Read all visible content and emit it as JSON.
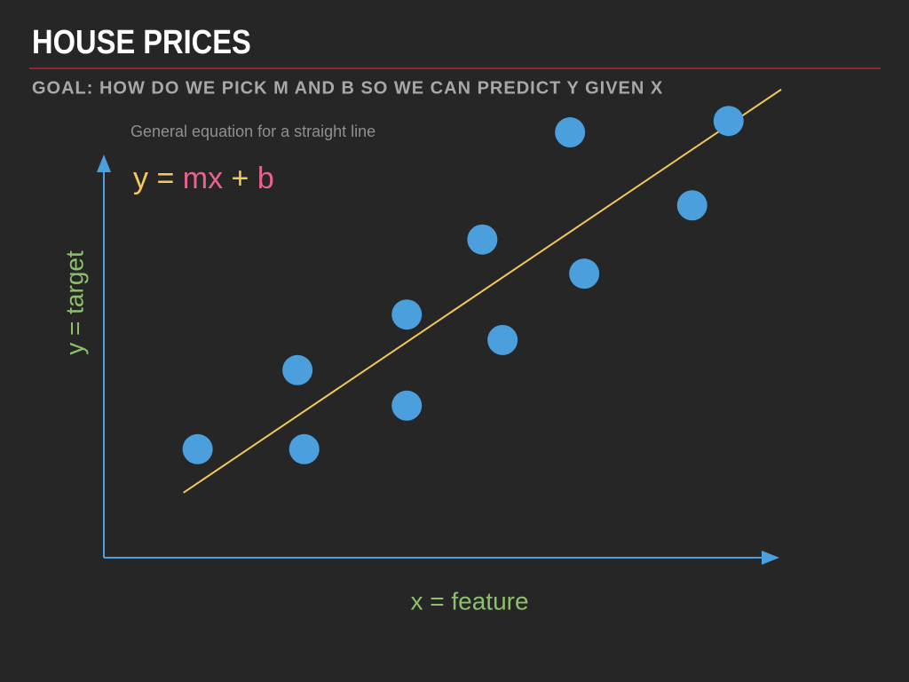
{
  "slide": {
    "title": "HOUSE PRICES",
    "subtitle": "GOAL: HOW DO WE PICK M AND B SO WE CAN PREDICT Y GIVEN X"
  },
  "chart_data": {
    "type": "scatter",
    "annotation": "General equation for a straight line",
    "equation": [
      {
        "text": "y = ",
        "color": "#f5c95c"
      },
      {
        "text": "mx",
        "color": "#e8638f"
      },
      {
        "text": " + ",
        "color": "#f5c95c"
      },
      {
        "text": "b",
        "color": "#e8638f"
      }
    ],
    "x_label": "x = feature",
    "y_label": "y = target",
    "xlim": [
      0,
      10
    ],
    "ylim": [
      0,
      7
    ],
    "x": [
      1.39,
      2.97,
      2.87,
      4.49,
      4.49,
      5.91,
      5.61,
      7.12,
      6.91,
      8.72,
      9.26
    ],
    "y": [
      1.62,
      1.62,
      2.8,
      2.27,
      3.63,
      3.25,
      4.75,
      4.24,
      6.35,
      5.26,
      6.52
    ],
    "color": "#4a9fdc",
    "fit_line": {
      "x": [
        1.18,
        10.04
      ],
      "y": [
        0.97,
        6.99
      ],
      "color": "#f0c85a"
    }
  }
}
